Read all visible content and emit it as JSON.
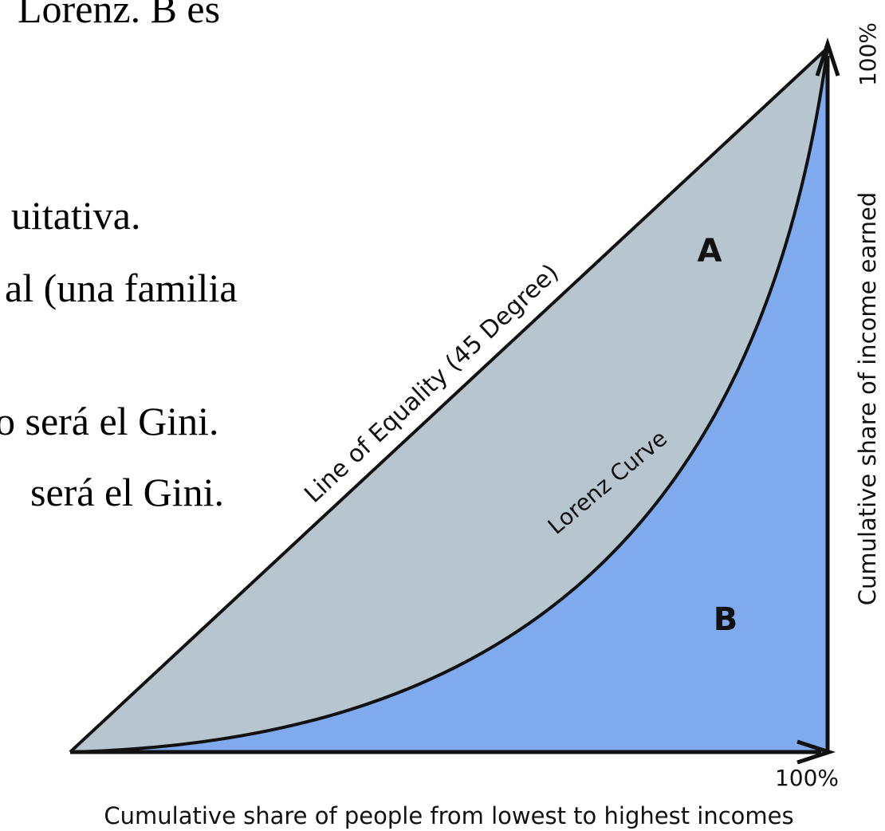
{
  "slide_text": [
    "Lorenz. B es",
    "uitativa.",
    "al (una familia",
    "o será el Gini.",
    "será el Gini."
  ],
  "diagram": {
    "y_axis_end_label": "100%",
    "y_axis_label": "Cumulative share of income earned",
    "x_axis_end_label": "100%",
    "x_axis_label": "Cumulative share of people from lowest to highest incomes",
    "equality_line_label": "Line of Equality (45 Degree)",
    "lorenz_curve_label": "Lorenz Curve",
    "area_a_label": "A",
    "area_b_label": "B"
  }
}
